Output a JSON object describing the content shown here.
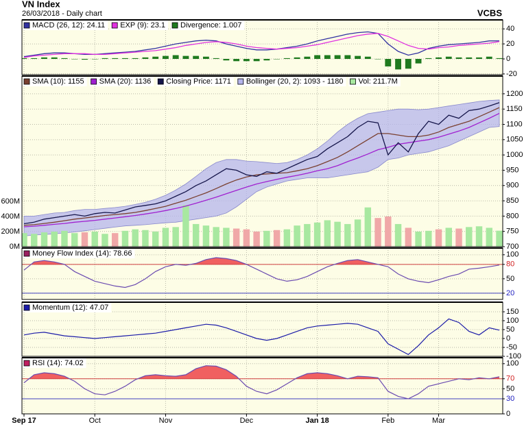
{
  "header": {
    "title": "VN Index",
    "subtitle": "26/03/2018 - Daily chart",
    "source": "VCBS"
  },
  "chart_data": [
    {
      "type": "macd",
      "ylim": [
        -21,
        52
      ],
      "yticks": [
        40,
        20,
        0,
        -20
      ],
      "grid": true,
      "series": [
        {
          "name": "MACD (26, 12): 24.11",
          "color": "#3030a0",
          "values": [
            3,
            5,
            7,
            8,
            8,
            7,
            6,
            6,
            7,
            8,
            9,
            10,
            12,
            14,
            17,
            20,
            22,
            24,
            25,
            24,
            20,
            17,
            14,
            12,
            12,
            13,
            15,
            17,
            20,
            24,
            27,
            30,
            33,
            35,
            36,
            34,
            20,
            10,
            5,
            8,
            14,
            17,
            19,
            20,
            21,
            22,
            24,
            24.11
          ]
        },
        {
          "name": "EXP (9): 23.1",
          "color": "#e030e0",
          "values": [
            2,
            4,
            5,
            6,
            7,
            7,
            7,
            6,
            6,
            7,
            8,
            9,
            10,
            11,
            13,
            15,
            18,
            20,
            22,
            23,
            22,
            20,
            17,
            15,
            14,
            13,
            14,
            15,
            17,
            19,
            22,
            25,
            28,
            31,
            33,
            34,
            30,
            24,
            18,
            14,
            13,
            15,
            16,
            18,
            19,
            20,
            21,
            23.1
          ]
        },
        {
          "name": "Divergence: 1.007",
          "color": "#1f7a1f",
          "kind": "bar",
          "values": [
            1,
            1,
            2,
            2,
            1,
            0,
            -1,
            0,
            1,
            1,
            1,
            1,
            2,
            3,
            4,
            5,
            4,
            4,
            3,
            1,
            -2,
            -3,
            -3,
            -3,
            -2,
            0,
            1,
            2,
            3,
            5,
            5,
            5,
            5,
            4,
            3,
            0,
            -10,
            -14,
            -13,
            -6,
            1,
            2,
            3,
            2,
            2,
            2,
            3,
            1.007
          ]
        }
      ]
    },
    {
      "type": "price",
      "ylim": [
        700,
        1258
      ],
      "yticks": [
        700,
        750,
        800,
        850,
        900,
        950,
        1000,
        1050,
        1100,
        1150,
        1200
      ],
      "grid": true,
      "y2lim": [
        0,
        2260
      ],
      "y2ticks": [
        {
          "value": 0,
          "label": "0M"
        },
        {
          "value": 200,
          "label": "200M"
        },
        {
          "value": 400,
          "label": "400M"
        },
        {
          "value": 600,
          "label": "600M"
        }
      ],
      "series": [
        {
          "name": "SMA (10): 1155",
          "color": "#7a4030",
          "values": [
            770,
            772,
            776,
            780,
            785,
            790,
            794,
            798,
            802,
            805,
            808,
            812,
            818,
            825,
            832,
            842,
            852,
            864,
            876,
            890,
            905,
            918,
            928,
            935,
            938,
            940,
            942,
            948,
            955,
            965,
            978,
            992,
            1010,
            1030,
            1050,
            1070,
            1070,
            1065,
            1060,
            1060,
            1065,
            1075,
            1090,
            1100,
            1110,
            1125,
            1140,
            1155
          ]
        },
        {
          "name": "SMA (20): 1136",
          "color": "#a020d0",
          "values": [
            765,
            767,
            770,
            773,
            776,
            780,
            783,
            786,
            790,
            794,
            798,
            802,
            807,
            812,
            818,
            825,
            833,
            842,
            852,
            862,
            873,
            884,
            895,
            905,
            913,
            920,
            927,
            933,
            940,
            948,
            955,
            965,
            978,
            990,
            1003,
            1017,
            1025,
            1035,
            1040,
            1045,
            1050,
            1058,
            1068,
            1078,
            1090,
            1105,
            1120,
            1136
          ]
        },
        {
          "name": "Closing Price: 1171",
          "color": "#15154a",
          "values": [
            775,
            780,
            790,
            795,
            800,
            805,
            800,
            808,
            812,
            810,
            820,
            830,
            835,
            840,
            850,
            865,
            880,
            900,
            915,
            935,
            955,
            950,
            935,
            930,
            945,
            940,
            955,
            970,
            985,
            995,
            1020,
            1040,
            1060,
            1090,
            1110,
            1105,
            1000,
            1040,
            1010,
            1070,
            1110,
            1100,
            1130,
            1120,
            1145,
            1150,
            1160,
            1171
          ]
        },
        {
          "name": "Bollinger (20, 2): 1093 - 1180",
          "color": "#b4b4ec",
          "kind": "band",
          "upper": [
            800,
            800,
            805,
            810,
            812,
            818,
            822,
            822,
            825,
            828,
            832,
            838,
            845,
            855,
            868,
            885,
            905,
            930,
            955,
            975,
            985,
            985,
            980,
            978,
            975,
            972,
            975,
            985,
            1000,
            1020,
            1045,
            1075,
            1100,
            1120,
            1135,
            1140,
            1145,
            1150,
            1150,
            1148,
            1150,
            1155,
            1160,
            1165,
            1170,
            1175,
            1178,
            1180
          ],
          "lower": [
            735,
            738,
            740,
            742,
            745,
            748,
            752,
            756,
            760,
            764,
            768,
            770,
            772,
            775,
            778,
            780,
            785,
            790,
            795,
            800,
            810,
            830,
            855,
            880,
            895,
            905,
            915,
            920,
            925,
            925,
            925,
            930,
            935,
            940,
            945,
            960,
            985,
            990,
            1000,
            1005,
            1010,
            1020,
            1030,
            1045,
            1060,
            1075,
            1090,
            1093
          ]
        },
        {
          "name": "Vol: 211.7M",
          "color": "#a8e8a0",
          "down_color": "#f0a8a8",
          "kind": "bar",
          "axis": "y2",
          "values": [
            180,
            170,
            190,
            200,
            210,
            180,
            190,
            200,
            170,
            180,
            210,
            230,
            220,
            200,
            250,
            260,
            550,
            300,
            280,
            260,
            250,
            240,
            230,
            200,
            210,
            220,
            230,
            280,
            300,
            320,
            350,
            330,
            300,
            360,
            520,
            380,
            400,
            300,
            250,
            200,
            210,
            230,
            250,
            240,
            260,
            270,
            250,
            211.7
          ]
        }
      ]
    },
    {
      "type": "oscillator",
      "ylim": [
        7,
        114
      ],
      "yticks": [
        100,
        80,
        50,
        20
      ],
      "overbought": 80,
      "oversold": 20,
      "fill": "#f06060",
      "grid": true,
      "series": [
        {
          "name": "Money Flow Index (14): 78.66",
          "color": "#6a4ab0",
          "legend_color": "#9a2060",
          "values": [
            68,
            85,
            88,
            85,
            80,
            65,
            55,
            45,
            40,
            35,
            32,
            38,
            50,
            65,
            75,
            80,
            78,
            82,
            90,
            94,
            92,
            88,
            80,
            70,
            60,
            50,
            45,
            48,
            55,
            65,
            75,
            82,
            88,
            90,
            85,
            80,
            75,
            60,
            50,
            45,
            42,
            48,
            55,
            60,
            70,
            72,
            75,
            78.66
          ]
        }
      ]
    },
    {
      "type": "line",
      "ylim": [
        -100,
        204
      ],
      "yticks": [
        150,
        100,
        50,
        0,
        -50,
        -100
      ],
      "grid": true,
      "series": [
        {
          "name": "Momentum (12): 47.07",
          "color": "#1a1aa8",
          "values": [
            20,
            30,
            35,
            25,
            15,
            10,
            5,
            0,
            5,
            10,
            15,
            20,
            25,
            30,
            40,
            50,
            60,
            70,
            80,
            75,
            60,
            40,
            20,
            0,
            -10,
            0,
            20,
            40,
            60,
            70,
            75,
            80,
            85,
            80,
            60,
            40,
            -30,
            -60,
            -90,
            -40,
            20,
            60,
            110,
            90,
            40,
            20,
            60,
            47.07
          ]
        }
      ]
    },
    {
      "type": "oscillator",
      "ylim": [
        0,
        112
      ],
      "yticks": [
        100,
        70,
        50,
        30,
        0
      ],
      "overbought": 70,
      "oversold": 30,
      "fill": "#f06060",
      "grid": true,
      "categories": [
        "Sep 17",
        null,
        null,
        null,
        null,
        null,
        null,
        "Oct",
        null,
        null,
        null,
        null,
        null,
        null,
        "Nov",
        null,
        null,
        null,
        null,
        null,
        null,
        null,
        "Dec",
        null,
        null,
        null,
        null,
        null,
        null,
        "Jan 18",
        null,
        null,
        null,
        null,
        null,
        null,
        "Feb",
        null,
        null,
        null,
        null,
        "Mar",
        null,
        null,
        null,
        null,
        null,
        null
      ],
      "series": [
        {
          "name": "RSI (14): 74.02",
          "color": "#6a4ab0",
          "legend_color": "#c02060",
          "values": [
            62,
            78,
            82,
            80,
            75,
            65,
            50,
            40,
            38,
            45,
            55,
            68,
            76,
            78,
            76,
            75,
            78,
            90,
            96,
            95,
            88,
            75,
            55,
            45,
            40,
            48,
            60,
            72,
            80,
            82,
            80,
            76,
            70,
            75,
            74,
            72,
            45,
            35,
            30,
            40,
            55,
            60,
            65,
            70,
            68,
            72,
            70,
            74.02
          ]
        }
      ]
    }
  ]
}
